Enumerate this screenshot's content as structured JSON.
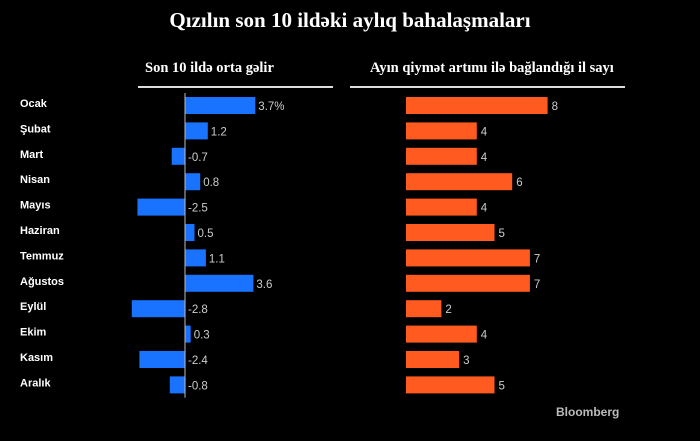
{
  "chart_data": [
    {
      "type": "bar",
      "title": "Qızılın son 10 ildəki aylıq bahalaşmaları",
      "subtitle": "Son 10 ildə orta gəlir",
      "categories": [
        "Ocak",
        "Şubat",
        "Mart",
        "Nisan",
        "Mayıs",
        "Haziran",
        "Temmuz",
        "Ağustos",
        "Eylül",
        "Ekim",
        "Kasım",
        "Aralık"
      ],
      "values": [
        3.7,
        1.2,
        -0.7,
        0.8,
        -2.5,
        0.5,
        1.1,
        3.6,
        -2.8,
        0.3,
        -2.4,
        -0.8
      ],
      "labels": [
        "3.7%",
        "1.2",
        "-0.7",
        "0.8",
        "-2.5",
        "0.5",
        "1.1",
        "3.6",
        "-2.8",
        "0.3",
        "-2.4",
        "-0.8"
      ],
      "color": "#1a73ff",
      "orientation": "horizontal"
    },
    {
      "type": "bar",
      "subtitle": "Ayın qiymət artımı ilə bağlandığı il sayı",
      "categories": [
        "Ocak",
        "Şubat",
        "Mart",
        "Nisan",
        "Mayıs",
        "Haziran",
        "Temmuz",
        "Ağustos",
        "Eylül",
        "Ekim",
        "Kasım",
        "Aralık"
      ],
      "values": [
        8,
        4,
        4,
        6,
        4,
        5,
        7,
        7,
        2,
        4,
        3,
        5
      ],
      "color": "#ff5a1f",
      "orientation": "horizontal"
    }
  ],
  "source": "Bloomberg"
}
